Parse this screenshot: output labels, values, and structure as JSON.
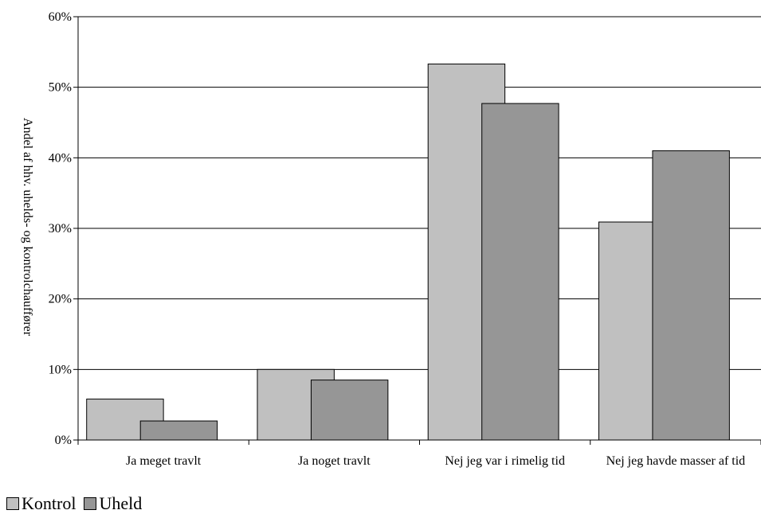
{
  "chart_data": {
    "type": "bar",
    "title": "",
    "xlabel": "",
    "ylabel": "Andel af hhv. uhelds- og kontrolchauffører",
    "ylim": [
      0,
      60
    ],
    "yticks": [
      "0%",
      "10%",
      "20%",
      "30%",
      "40%",
      "50%",
      "60%"
    ],
    "grid": true,
    "legend_position": "bottom-left",
    "categories": [
      "Ja meget travlt",
      "Ja noget travlt",
      "Nej jeg var i rimelig tid",
      "Nej jeg havde masser af tid"
    ],
    "series": [
      {
        "name": "Kontrol",
        "color": "#c0c0c0",
        "values": [
          5.8,
          10.0,
          53.3,
          30.9
        ]
      },
      {
        "name": "Uheld",
        "color": "#969696",
        "values": [
          2.7,
          8.5,
          47.7,
          41.0
        ]
      }
    ]
  }
}
